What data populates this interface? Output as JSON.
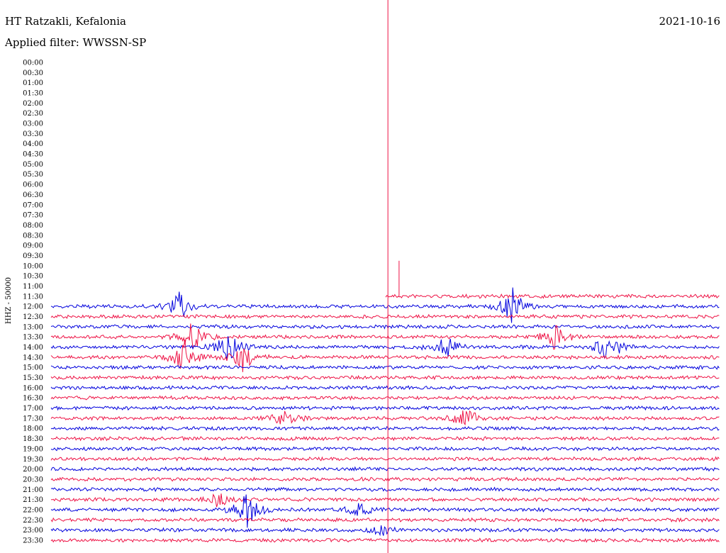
{
  "header": {
    "station": "HT Ratzakli, Kefalonia",
    "filter": "Applied filter: WWSSN-SP",
    "date": "2021-10-16"
  },
  "chart_data": {
    "type": "line",
    "title": "HT Ratzakli, Kefalonia",
    "subtitle": "Applied filter: WWSSN-SP",
    "date": "2021-10-16",
    "ylabel": "HHZ - 50000",
    "row_labels": [
      "00:00",
      "00:30",
      "01:00",
      "01:30",
      "02:00",
      "02:30",
      "03:00",
      "03:30",
      "04:00",
      "04:30",
      "05:00",
      "05:30",
      "06:00",
      "06:30",
      "07:00",
      "07:30",
      "08:00",
      "08:30",
      "09:00",
      "09:30",
      "10:00",
      "10:30",
      "11:00",
      "11:30",
      "12:00",
      "12:30",
      "13:00",
      "13:30",
      "14:00",
      "14:30",
      "15:00",
      "15:30",
      "16:00",
      "16:30",
      "17:00",
      "17:30",
      "18:00",
      "18:30",
      "19:00",
      "19:30",
      "20:00",
      "20:30",
      "21:00",
      "21:30",
      "22:00",
      "22:30",
      "23:00",
      "23:30"
    ],
    "first_trace_row": "11:30",
    "trace_start_minute": 15,
    "colors": [
      "#0000dd",
      "#ee1144"
    ],
    "grid": false,
    "events": [
      {
        "row": "11:30",
        "minute": 15.1,
        "amplitude": 1.0,
        "kind": "spike"
      },
      {
        "row": "11:30",
        "minute": 15.6,
        "amplitude": 0.2,
        "kind": "spike"
      },
      {
        "row": "12:00",
        "minute": 5.8,
        "amplitude": 0.9,
        "kind": "burst"
      },
      {
        "row": "12:00",
        "minute": 20.7,
        "amplitude": 1.0,
        "kind": "burst"
      },
      {
        "row": "13:30",
        "minute": 6.3,
        "amplitude": 0.9,
        "kind": "burst"
      },
      {
        "row": "13:30",
        "minute": 22.6,
        "amplitude": 0.8,
        "kind": "burst"
      },
      {
        "row": "14:00",
        "minute": 8.0,
        "amplitude": 1.0,
        "kind": "burst"
      },
      {
        "row": "14:00",
        "minute": 17.6,
        "amplitude": 0.8,
        "kind": "burst"
      },
      {
        "row": "14:00",
        "minute": 25.0,
        "amplitude": 0.9,
        "kind": "burst"
      },
      {
        "row": "14:30",
        "minute": 6.0,
        "amplitude": 0.9,
        "kind": "burst"
      },
      {
        "row": "14:30",
        "minute": 8.6,
        "amplitude": 0.8,
        "kind": "burst"
      },
      {
        "row": "17:30",
        "minute": 10.4,
        "amplitude": 0.5,
        "kind": "burst"
      },
      {
        "row": "17:30",
        "minute": 18.6,
        "amplitude": 0.6,
        "kind": "burst"
      },
      {
        "row": "21:30",
        "minute": 7.5,
        "amplitude": 0.4,
        "kind": "burst"
      },
      {
        "row": "22:00",
        "minute": 8.8,
        "amplitude": 1.0,
        "kind": "burst"
      },
      {
        "row": "22:00",
        "minute": 13.8,
        "amplitude": 0.4,
        "kind": "burst"
      },
      {
        "row": "23:00",
        "minute": 14.8,
        "amplitude": 0.3,
        "kind": "burst"
      }
    ]
  }
}
